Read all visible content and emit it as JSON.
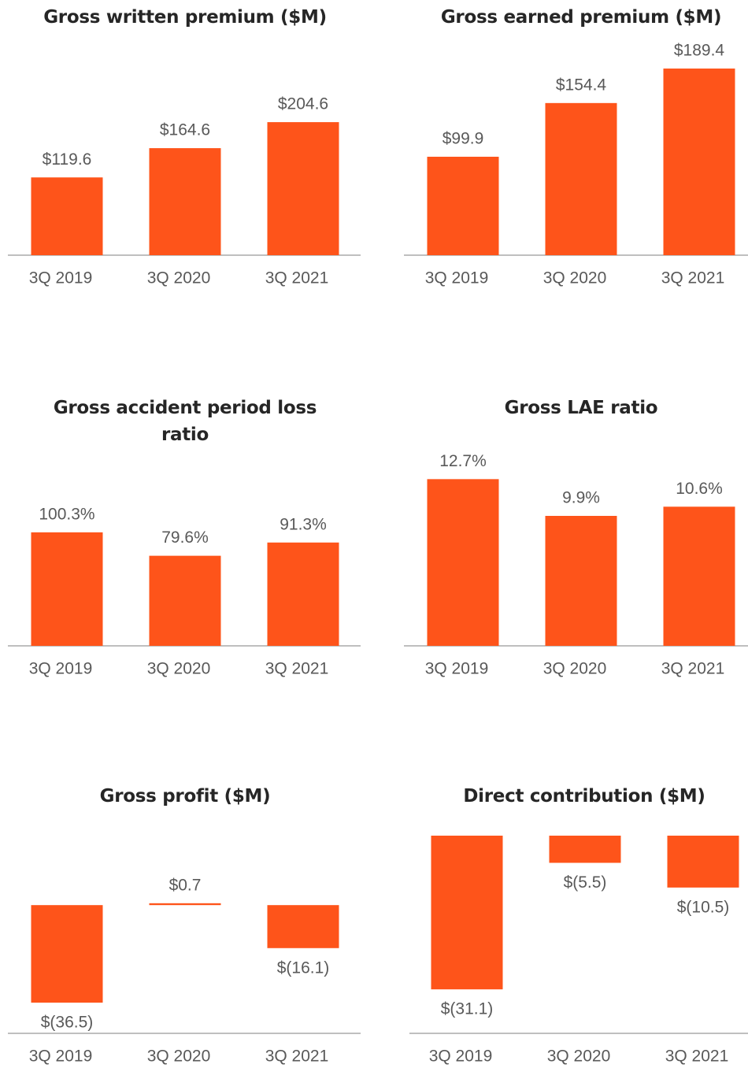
{
  "chart_data": [
    {
      "type": "bar",
      "title": "Gross written premium ($M)",
      "categories": [
        "3Q 2019",
        "3Q 2020",
        "3Q 2021"
      ],
      "values": [
        119.6,
        164.6,
        204.6
      ],
      "value_labels": [
        "$119.6",
        "$164.6",
        "$204.6"
      ],
      "color": "#fe541a",
      "ylim": [
        0,
        344
      ]
    },
    {
      "type": "bar",
      "title": "Gross earned premium ($M)",
      "categories": [
        "3Q 2019",
        "3Q 2020",
        "3Q 2021"
      ],
      "values": [
        99.9,
        154.4,
        189.4
      ],
      "value_labels": [
        "$99.9",
        "$154.4",
        "$189.4"
      ],
      "color": "#fe541a",
      "ylim": [
        0,
        227
      ]
    },
    {
      "type": "bar",
      "title": "Gross accident period loss ratio",
      "categories": [
        "3Q 2019",
        "3Q 2020",
        "3Q 2021"
      ],
      "values": [
        100.3,
        79.6,
        91.3
      ],
      "value_labels": [
        "100.3%",
        "79.6%",
        "91.3%"
      ],
      "color": "#fe541a",
      "ylim": [
        0,
        174
      ]
    },
    {
      "type": "bar",
      "title": "Gross LAE ratio",
      "categories": [
        "3Q 2019",
        "3Q 2020",
        "3Q 2021"
      ],
      "values": [
        12.7,
        9.9,
        10.6
      ],
      "value_labels": [
        "12.7%",
        "9.9%",
        "10.6%"
      ],
      "color": "#fe541a",
      "ylim": [
        0,
        15
      ]
    },
    {
      "type": "bar",
      "title": "Gross profit ($M)",
      "categories": [
        "3Q 2019",
        "3Q 2020",
        "3Q 2021"
      ],
      "values": [
        -36.5,
        0.7,
        -16.1
      ],
      "value_labels": [
        "$(36.5)",
        "$0.7",
        "$(16.1)"
      ],
      "color": "#fe541a",
      "ylim": [
        -48,
        26
      ]
    },
    {
      "type": "bar",
      "title": "Direct contribution ($M)",
      "categories": [
        "3Q 2019",
        "3Q 2020",
        "3Q 2021"
      ],
      "values": [
        -31.1,
        -5.5,
        -10.5
      ],
      "value_labels": [
        "$(31.1)",
        "$(5.5)",
        "$(10.5)"
      ],
      "color": "#fe541a",
      "ylim": [
        -40,
        0
      ]
    }
  ]
}
